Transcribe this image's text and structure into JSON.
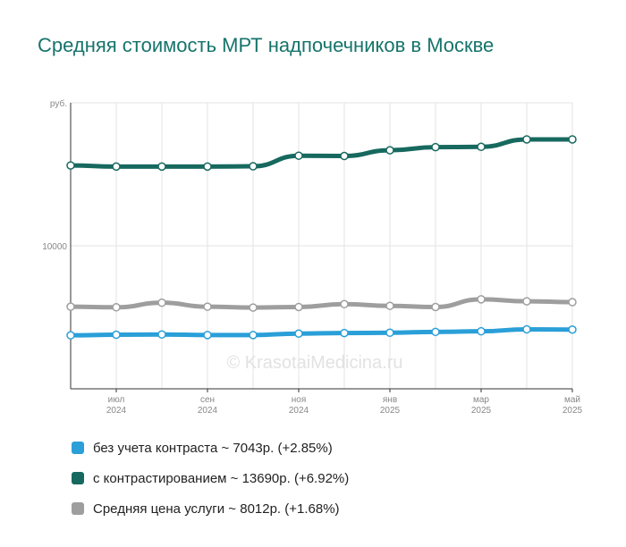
{
  "title": "Средняя стоимость МРТ надпочечников в Москве",
  "watermark": "© KrasotaiMedicina.ru",
  "legend": [
    {
      "label": "без учета контраста ~ 7043р. (+2.85%)",
      "color": "#2a9fd8"
    },
    {
      "label": "с контрастированием ~ 13690р. (+6.92%)",
      "color": "#17695f"
    },
    {
      "label": "Средняя цена услуги ~ 8012р. (+1.68%)",
      "color": "#9e9e9e"
    }
  ],
  "chart_data": {
    "type": "line",
    "y_unit_label": "руб.",
    "y_tick_labels": [
      "10000"
    ],
    "ylim": [
      5000,
      15000
    ],
    "x_tick_labels": [
      {
        "label": [
          "июл",
          "2024"
        ],
        "index": 1
      },
      {
        "label": [
          "сен",
          "2024"
        ],
        "index": 3
      },
      {
        "label": [
          "ноя",
          "2024"
        ],
        "index": 5
      },
      {
        "label": [
          "янв",
          "2025"
        ],
        "index": 7
      },
      {
        "label": [
          "мар",
          "2025"
        ],
        "index": 9
      },
      {
        "label": [
          "май",
          "2025"
        ],
        "index": 11
      }
    ],
    "n_points": 12,
    "series": [
      {
        "name": "с контрастированием",
        "color": "#17695f",
        "values": [
          12810,
          12770,
          12770,
          12770,
          12780,
          13150,
          13140,
          13340,
          13450,
          13460,
          13720,
          13720
        ]
      },
      {
        "name": "Средняя цена услуги",
        "color": "#9e9e9e",
        "values": [
          7870,
          7850,
          8010,
          7870,
          7840,
          7860,
          7960,
          7900,
          7860,
          8130,
          8060,
          8030
        ]
      },
      {
        "name": "без учета контраста",
        "color": "#2a9fd8",
        "values": [
          6870,
          6890,
          6900,
          6880,
          6880,
          6930,
          6950,
          6960,
          6990,
          7010,
          7080,
          7070
        ]
      }
    ]
  }
}
